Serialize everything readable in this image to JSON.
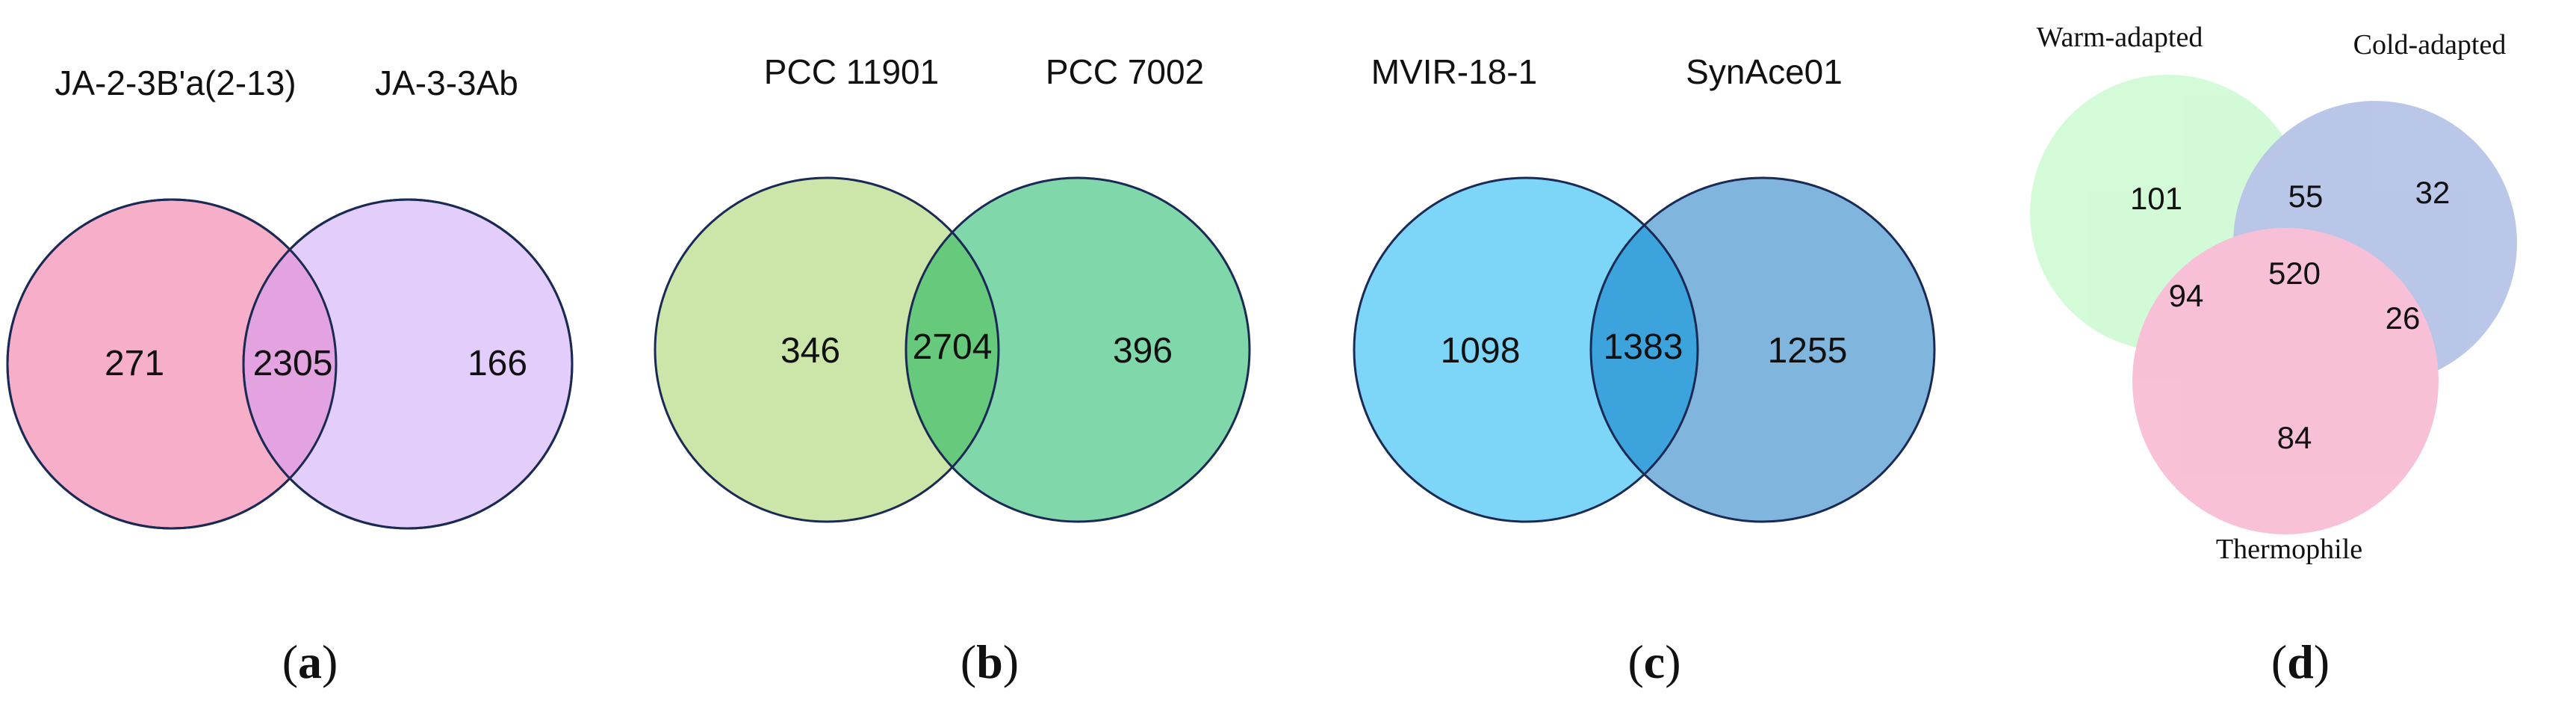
{
  "panels": {
    "a": {
      "sets": [
        "JA-2-3B'a(2-13)",
        "JA-3-3Ab"
      ],
      "counts": {
        "left_only": "271",
        "overlap": "2305",
        "right_only": "166"
      },
      "colors": {
        "left": "#f7afc9",
        "right": "#e3cdfb",
        "overlap": "#e2a3e0"
      },
      "caption": {
        "open": "(",
        "letter": "a",
        "close": ")"
      }
    },
    "b": {
      "sets": [
        "PCC 11901",
        "PCC 7002"
      ],
      "counts": {
        "left_only": "346",
        "overlap": "2704",
        "right_only": "396"
      },
      "colors": {
        "left": "#cbe6a8",
        "right": "#80d8aa",
        "overlap": "#66c97c"
      },
      "caption": {
        "open": "(",
        "letter": "b",
        "close": ")"
      }
    },
    "c": {
      "sets": [
        "MVIR-18-1",
        "SynAce01"
      ],
      "counts": {
        "left_only": "1098",
        "overlap": "1383",
        "right_only": "1255"
      },
      "colors": {
        "left": "#7dd6f8",
        "right": "#80b6dd",
        "overlap": "#3da3dc"
      },
      "caption": {
        "open": "(",
        "letter": "c",
        "close": ")"
      }
    },
    "d": {
      "sets": [
        "Warm-adapted",
        "Cold-adapted",
        "Thermophile"
      ],
      "counts": {
        "warm_only": "101",
        "warm_cold": "55",
        "cold_only": "32",
        "warm_thermo": "94",
        "all_three": "520",
        "cold_thermo": "26",
        "thermo_only": "84"
      },
      "colors": {
        "warm": "#c3f9c7",
        "cold": "#9fb1e0",
        "thermo": "#f6a9c8"
      },
      "caption": {
        "open": "(",
        "letter": "d",
        "close": ")"
      }
    }
  }
}
